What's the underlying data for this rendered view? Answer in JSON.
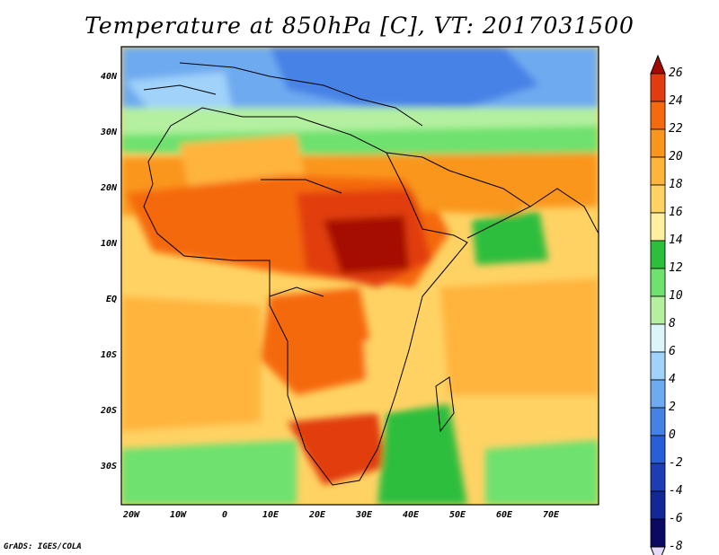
{
  "title": "Temperature at 850hPa [C], VT: 2017031500",
  "credit": "GrADS: IGES/COLA",
  "lat_labels": [
    "40N",
    "30N",
    "20N",
    "10N",
    "EQ",
    "10S",
    "20S",
    "30S"
  ],
  "lon_labels": [
    "20W",
    "10W",
    "0",
    "10E",
    "20E",
    "30E",
    "40E",
    "50E",
    "60E",
    "70E"
  ],
  "colorbar": {
    "labels": [
      "26",
      "24",
      "22",
      "20",
      "18",
      "16",
      "14",
      "12",
      "10",
      "8",
      "6",
      "4",
      "2",
      "0",
      "-2",
      "-4",
      "-6",
      "-8"
    ],
    "colors": [
      "#a50a00",
      "#e13c0f",
      "#f5690f",
      "#fa961e",
      "#ffb43c",
      "#ffd264",
      "#fff0a0",
      "#2dbe3c",
      "#6ee16e",
      "#b4f0a0",
      "#dcf5fa",
      "#a0d2fa",
      "#6eaaf0",
      "#4682e6",
      "#285fd7",
      "#1e3cb4",
      "#122896",
      "#0a0a64",
      "#e6dcfa"
    ]
  }
}
